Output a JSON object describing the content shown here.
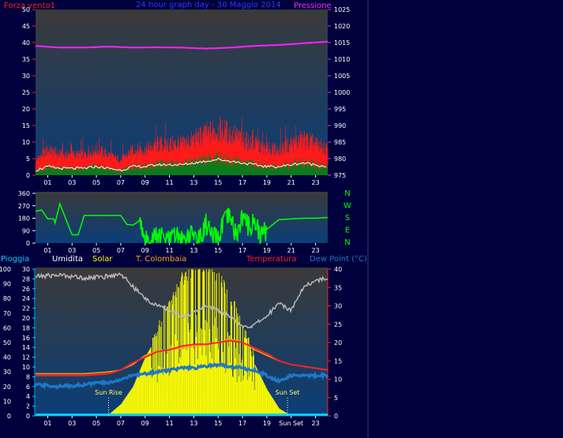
{
  "colors": {
    "frame_bg": "#00003c",
    "plot_top": "#3a3a3a",
    "plot_bottom": "#0a3e78",
    "axis_text": "#ffffff",
    "wind": "#ff1a1a",
    "gust_fill": "#0b7a1a",
    "avg_wind": "#ffffff",
    "pressure": "#ff22ff",
    "direction": "#00ff00",
    "humidity": "#b8b8b8",
    "solar": "#ffff00",
    "colombaia": "#ffa018",
    "temperature": "#ff2020",
    "dew_point": "#1e78c8",
    "rain": "#00d0ff",
    "title": "#2a3cff"
  },
  "chart_data": [
    {
      "type": "line",
      "title": "24 hour graph day - 30 Maggio 2014",
      "ylabel_left": "Forza vento1",
      "ylabel_right": "Pressione",
      "x_ticks": [
        "01",
        "03",
        "05",
        "07",
        "09",
        "11",
        "13",
        "15",
        "17",
        "19",
        "21",
        "23"
      ],
      "y_left_ticks": [
        0,
        5,
        10,
        15,
        20,
        25,
        30,
        35,
        40,
        45,
        50
      ],
      "y_right_ticks": [
        975,
        980,
        985,
        990,
        995,
        1000,
        1005,
        1010,
        1015,
        1020,
        1025
      ],
      "ylim_left": [
        0,
        50
      ],
      "ylim_right": [
        975,
        1025
      ],
      "series": [
        {
          "name": "Pressione",
          "axis": "right",
          "x": [
            0,
            2,
            4,
            6,
            8,
            10,
            12,
            14,
            16,
            18,
            20,
            22,
            24
          ],
          "values": [
            1014,
            1013.5,
            1013.5,
            1013.8,
            1013.5,
            1013.6,
            1013.5,
            1013.2,
            1013.5,
            1014,
            1014.3,
            1014.8,
            1015.3
          ]
        },
        {
          "name": "Forza vento1",
          "axis": "left",
          "x": [
            0,
            1,
            2,
            3,
            4,
            5,
            6,
            7,
            8,
            9,
            10,
            11,
            12,
            13,
            14,
            15,
            16,
            17,
            18,
            19,
            20,
            21,
            22,
            23,
            24
          ],
          "values": [
            2,
            4,
            3,
            3,
            3,
            4,
            3,
            2,
            4,
            4,
            5,
            5,
            5,
            6,
            7,
            8,
            7,
            6,
            5,
            4,
            4,
            5,
            6,
            5,
            4
          ]
        }
      ]
    },
    {
      "type": "line",
      "y_left_ticks": [
        0,
        90,
        180,
        270,
        360
      ],
      "ylim_left": [
        0,
        360
      ],
      "y_right_labels": [
        "N",
        "W",
        "S",
        "E",
        "N"
      ],
      "series": [
        {
          "name": "direction",
          "x": [
            0,
            0.5,
            1,
            1.5,
            1.6,
            2,
            3,
            3.5,
            4,
            6,
            7,
            7.5,
            8,
            8.5,
            9,
            9.5,
            10,
            10.5,
            11,
            11.5,
            12,
            12.5,
            13,
            13.5,
            14,
            14.5,
            15,
            15.5,
            16,
            16.5,
            17,
            17.5,
            18,
            18.5,
            19,
            20,
            21,
            22,
            23,
            24
          ],
          "values": [
            230,
            240,
            175,
            175,
            145,
            285,
            60,
            60,
            200,
            200,
            200,
            135,
            130,
            160,
            10,
            30,
            50,
            40,
            10,
            60,
            15,
            50,
            60,
            20,
            140,
            40,
            30,
            165,
            180,
            50,
            195,
            120,
            160,
            45,
            100,
            170,
            175,
            180,
            180,
            185
          ]
        }
      ]
    },
    {
      "type": "line",
      "legend": [
        "Pioggia",
        "Umidita",
        "Solar",
        "T. Colombaia",
        "Temperatura",
        "Dew Point (°C)"
      ],
      "x_ticks": [
        "01",
        "03",
        "05",
        "07",
        "09",
        "11",
        "13",
        "15",
        "17",
        "19",
        "Sun Set",
        "23"
      ],
      "y_rain_ticks": [
        0,
        10,
        20,
        30,
        40,
        50,
        60,
        70,
        80,
        90,
        100
      ],
      "y_left2_ticks": [
        0,
        2,
        4,
        6,
        8,
        10,
        12,
        14,
        16,
        18,
        20,
        22,
        24,
        26,
        28,
        30
      ],
      "y_right_ticks": [
        0,
        5,
        10,
        15,
        20,
        25,
        30,
        35,
        40
      ],
      "ylim_rain": [
        0,
        100
      ],
      "ylim_right": [
        0,
        40
      ],
      "annotations": [
        {
          "text": "Sun Rise",
          "x": 6.0
        },
        {
          "text": "Sun Set",
          "x": 20.7
        }
      ],
      "series": [
        {
          "name": "Umidita",
          "axis": "rain",
          "x": [
            0,
            2,
            4,
            6,
            7,
            8,
            9,
            10,
            11,
            12,
            13,
            14,
            15,
            16,
            17,
            18,
            19,
            20,
            21,
            22,
            23,
            24
          ],
          "values": [
            95,
            96,
            94,
            95,
            97,
            88,
            80,
            75,
            72,
            68,
            70,
            75,
            72,
            68,
            60,
            62,
            68,
            77,
            72,
            88,
            92,
            94
          ]
        },
        {
          "name": "Solar",
          "axis": "rain",
          "x": [
            0,
            5,
            6,
            7,
            8,
            9,
            10,
            11,
            12,
            13,
            14,
            15,
            16,
            17,
            18,
            19,
            20,
            21,
            24
          ],
          "values": [
            0,
            0,
            1,
            8,
            20,
            40,
            55,
            72,
            88,
            95,
            98,
            90,
            75,
            55,
            35,
            18,
            5,
            0,
            0
          ]
        },
        {
          "name": "Temperatura",
          "axis": "right",
          "x": [
            0,
            2,
            4,
            6,
            7,
            8,
            9,
            10,
            11,
            12,
            13,
            14,
            15,
            16,
            17,
            18,
            19,
            20,
            21,
            22,
            23,
            24
          ],
          "values": [
            11,
            11,
            11,
            11.5,
            12.5,
            14.5,
            16,
            17.5,
            18,
            19,
            19.5,
            19.5,
            20,
            20.5,
            20,
            18.5,
            17,
            15,
            14,
            13.5,
            13,
            12.5
          ]
        },
        {
          "name": "T. Colombaia",
          "axis": "right",
          "x": [
            0,
            2,
            4,
            6,
            7,
            8,
            9,
            10,
            11,
            12,
            13,
            14,
            15,
            16,
            17,
            18,
            19,
            20,
            21,
            22,
            23,
            24
          ],
          "values": [
            11.5,
            11.5,
            11.5,
            12,
            12.5,
            14,
            16.5,
            17.5,
            18,
            18.5,
            19,
            19.5,
            20,
            21,
            20,
            18,
            16.5,
            15,
            14,
            13.5,
            13,
            12.5
          ]
        },
        {
          "name": "Dew Point (°C)",
          "axis": "right",
          "x": [
            0,
            2,
            4,
            5,
            6,
            7,
            8,
            9,
            10,
            11,
            12,
            13,
            14,
            15,
            16,
            17,
            18,
            19,
            20,
            21,
            22,
            23,
            24
          ],
          "values": [
            8.5,
            8,
            8.5,
            9,
            9,
            10,
            11,
            11.5,
            12,
            12.5,
            13,
            13,
            13.5,
            14,
            13.5,
            13,
            12.5,
            11,
            9.5,
            11,
            11,
            11,
            11
          ]
        },
        {
          "name": "Pioggia",
          "axis": "rain",
          "x": [
            0,
            24
          ],
          "values": [
            0,
            0
          ]
        }
      ]
    }
  ]
}
